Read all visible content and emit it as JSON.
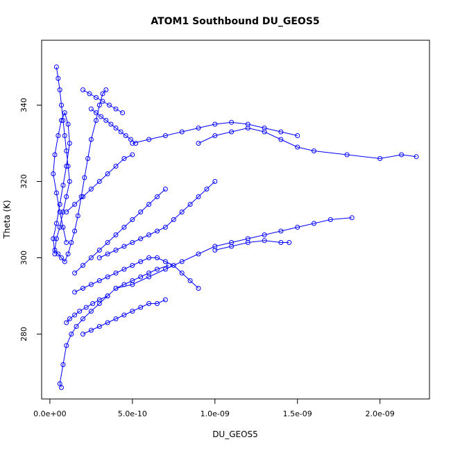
{
  "chart_data": {
    "type": "scatter",
    "title": "ATOM1 Southbound DU_GEOS5",
    "xlabel": "DU_GEOS5",
    "ylabel": "Theta (K)",
    "xlim": [
      -5e-11,
      2.3e-09
    ],
    "ylim": [
      263,
      357
    ],
    "xticks": [
      0,
      5e-10,
      1e-09,
      1.5e-09,
      2e-09
    ],
    "xtick_labels": [
      "0.0e+00",
      "5.0e-10",
      "1.0e-09",
      "1.5e-09",
      "2.0e-09"
    ],
    "yticks": [
      280,
      300,
      320,
      340
    ],
    "ytick_labels": [
      "280",
      "300",
      "320",
      "340"
    ],
    "color": "#0000ff",
    "marker": "open-circle",
    "lines": "connected",
    "grid": false,
    "legend": "none",
    "series": [
      {
        "x": [
          4e-11,
          5e-11,
          6e-11,
          7e-11,
          8e-11,
          9e-11,
          1e-10,
          1.1e-10,
          1.2e-10,
          1e-10,
          8e-11,
          6e-11,
          4e-11,
          3e-11,
          5e-11,
          7e-11,
          9e-11,
          1.1e-10,
          1.3e-10,
          1.5e-10,
          1.7e-10,
          1.9e-10,
          2.1e-10,
          2.3e-10,
          2.5e-10,
          2.8e-10,
          3e-10,
          3.2e-10,
          3.4e-10
        ],
        "y": [
          350,
          347,
          344,
          340,
          336,
          332,
          328,
          324,
          320,
          316,
          312,
          308,
          305,
          302,
          301,
          300,
          299,
          301,
          304,
          307,
          311,
          316,
          321,
          326,
          331,
          336,
          340,
          343,
          344
        ]
      },
      {
        "x": [
          3e-11,
          2e-11,
          4e-11,
          6e-11,
          8e-11,
          1e-10,
          1.2e-10,
          1.1e-10,
          9e-11,
          7e-11,
          5e-11,
          3e-11,
          2e-11,
          4e-11,
          6e-11,
          8e-11,
          1e-10
        ],
        "y": [
          301,
          305,
          309,
          314,
          319,
          324,
          330,
          335,
          338,
          336,
          332,
          327,
          322,
          317,
          312,
          308,
          304
        ]
      },
      {
        "x": [
          7e-11,
          6e-11,
          8e-11,
          1e-10,
          1.3e-10,
          1.6e-10,
          2e-10,
          2.5e-10,
          3e-10,
          3.5e-10,
          4e-10,
          4.5e-10,
          5e-10,
          5.5e-10,
          6e-10,
          6.5e-10,
          7.2e-10
        ],
        "y": [
          266,
          267,
          272,
          277,
          280,
          282,
          284,
          286,
          288,
          290,
          292,
          293,
          294,
          295,
          296,
          297,
          298
        ]
      },
      {
        "x": [
          1.5e-10,
          2e-10,
          2.5e-10,
          3e-10,
          3.5e-10,
          4e-10,
          4.5e-10,
          5e-10,
          5.5e-10,
          6e-10,
          6.5e-10,
          7e-10,
          7.5e-10,
          8e-10,
          8.5e-10,
          9e-10
        ],
        "y": [
          291,
          292,
          293,
          294,
          295,
          296,
          297,
          298,
          299,
          300,
          300,
          299,
          298,
          296,
          294,
          292
        ]
      },
      {
        "x": [
          2e-10,
          2.5e-10,
          3e-10,
          3.5e-10,
          4e-10,
          4.5e-10,
          5e-10,
          5.5e-10,
          6e-10,
          6.5e-10,
          7e-10
        ],
        "y": [
          280,
          281,
          282,
          283,
          284,
          285,
          286,
          287,
          288,
          288,
          289
        ]
      },
      {
        "x": [
          3e-10,
          3.5e-10,
          4e-10,
          4.5e-10,
          5e-10,
          5.5e-10,
          6e-10,
          6.5e-10,
          7e-10,
          7.5e-10,
          8e-10,
          8.5e-10,
          9e-10,
          9.5e-10,
          1e-09
        ],
        "y": [
          300,
          301,
          302,
          303,
          304,
          305,
          306,
          307,
          308,
          310,
          312,
          314,
          316,
          318,
          320
        ]
      },
      {
        "x": [
          9e-10,
          1e-09,
          1.1e-09,
          1.2e-09,
          1.3e-09,
          1.4e-09,
          1.5e-09,
          1.6e-09,
          1.8e-09,
          2e-09,
          2.13e-09,
          2.22e-09
        ],
        "y": [
          330,
          332,
          333,
          334,
          333,
          331,
          329,
          328,
          327,
          326,
          327,
          326.5
        ]
      },
      {
        "x": [
          5e-10,
          6e-10,
          7e-10,
          8e-10,
          9e-10,
          1e-09,
          1.1e-09,
          1.2e-09,
          1.3e-09,
          1.4e-09,
          1.5e-09
        ],
        "y": [
          330,
          331,
          332,
          333,
          334,
          335,
          335.5,
          335,
          334,
          333,
          332
        ]
      },
      {
        "x": [
          1.5e-10,
          2e-10,
          2.5e-10,
          3e-10,
          3.5e-10,
          4e-10,
          4.5e-10,
          5e-10,
          5.5e-10,
          6e-10,
          6.5e-10,
          7e-10
        ],
        "y": [
          296,
          298,
          300,
          302,
          304,
          306,
          308,
          310,
          312,
          314,
          316,
          318
        ]
      },
      {
        "x": [
          4e-10,
          5e-10,
          6e-10,
          7e-10,
          8e-10,
          9e-10,
          1e-09,
          1.1e-09,
          1.2e-09,
          1.3e-09,
          1.4e-09,
          1.5e-09,
          1.6e-09,
          1.7e-09,
          1.83e-09
        ],
        "y": [
          292,
          293,
          295,
          297,
          299,
          301,
          303,
          304,
          305,
          306,
          307,
          308,
          309,
          310,
          310.5
        ]
      },
      {
        "x": [
          1e-10,
          1.5e-10,
          2e-10,
          2.5e-10,
          3e-10,
          3.5e-10,
          4e-10,
          4.5e-10,
          5e-10
        ],
        "y": [
          312,
          314,
          316,
          318,
          320,
          322,
          324,
          326,
          327
        ]
      },
      {
        "x": [
          2.5e-10,
          2.8e-10,
          3.1e-10,
          3.4e-10,
          3.7e-10,
          4e-10,
          4.3e-10,
          4.6e-10,
          4.9e-10,
          5.2e-10
        ],
        "y": [
          339,
          338,
          337,
          336,
          335,
          334,
          333,
          332,
          331,
          330
        ]
      },
      {
        "x": [
          1e-09,
          1.1e-09,
          1.2e-09,
          1.3e-09,
          1.4e-09,
          1.45e-09
        ],
        "y": [
          302,
          303,
          304,
          304.5,
          304,
          304
        ]
      },
      {
        "x": [
          1e-10,
          1.2e-10,
          1.5e-10,
          1.8e-10,
          2.2e-10,
          2.6e-10,
          3e-10,
          3.5e-10
        ],
        "y": [
          283,
          284,
          285,
          286,
          287,
          288,
          289,
          290
        ]
      },
      {
        "x": [
          2e-10,
          2.4e-10,
          2.8e-10,
          3.2e-10,
          3.6e-10,
          4e-10,
          4.4e-10
        ],
        "y": [
          344,
          343,
          342,
          341,
          340,
          339,
          338
        ]
      }
    ]
  }
}
